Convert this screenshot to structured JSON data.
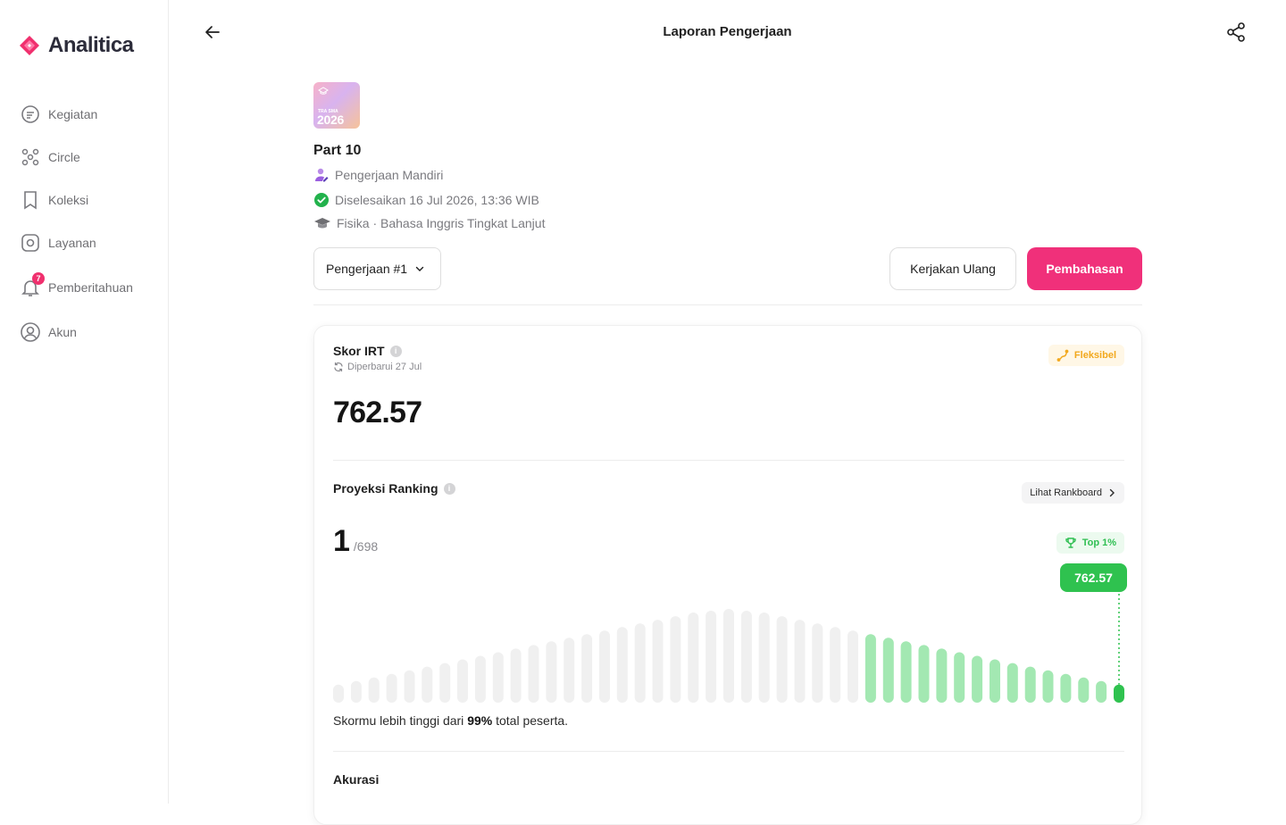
{
  "app": {
    "name": "Analitica",
    "brand_color": "#f0306e"
  },
  "sidebar": {
    "items": [
      {
        "label": "Kegiatan",
        "icon": "activity-icon"
      },
      {
        "label": "Circle",
        "icon": "circle-group-icon"
      },
      {
        "label": "Koleksi",
        "icon": "bookmark-icon"
      },
      {
        "label": "Layanan",
        "icon": "compass-icon"
      },
      {
        "label": "Pemberitahuan",
        "icon": "bell-icon",
        "badge": "7"
      },
      {
        "label": "Akun",
        "icon": "user-circle-icon"
      }
    ]
  },
  "header": {
    "title": "Laporan Pengerjaan"
  },
  "exam": {
    "thumb_small": "TRA SMA",
    "thumb_year": "2026",
    "title": "Part 10",
    "mode": "Pengerjaan Mandiri",
    "completed": "Diselesaikan 16 Jul 2026, 13:36 WIB",
    "subjects": "Fisika · Bahasa Inggris Tingkat Lanjut"
  },
  "actions": {
    "attempt_selected": "Pengerjaan #1",
    "redo_label": "Kerjakan Ulang",
    "review_label": "Pembahasan"
  },
  "irt": {
    "title": "Skor IRT",
    "updated": "Diperbarui 27 Jul",
    "badge": "Fleksibel",
    "score": "762.57"
  },
  "ranking": {
    "title": "Proyeksi Ranking",
    "rankboard_label": "Lihat Rankboard",
    "rank": "1",
    "total": "/698",
    "top_badge": "Top 1%",
    "score_pill": "762.57",
    "summary_before": "Skormu lebih tinggi dari ",
    "summary_pct": "99%",
    "summary_after": " total peserta."
  },
  "accuracy": {
    "title": "Akurasi"
  },
  "chart_data": {
    "type": "bar",
    "values": [
      20,
      24,
      28,
      32,
      36,
      40,
      44,
      48,
      52,
      56,
      60,
      64,
      68,
      72,
      76,
      80,
      84,
      88,
      92,
      96,
      100,
      102,
      104,
      102,
      100,
      96,
      92,
      88,
      84,
      80,
      76,
      72,
      68,
      64,
      60,
      56,
      52,
      48,
      44,
      40,
      36,
      32,
      28,
      24,
      20
    ],
    "highlight_from_index": 30,
    "marker_index": 44,
    "colors": {
      "base": "#f0f0f0",
      "highlight": "#a3e8b2",
      "marker": "#2fc24f"
    }
  }
}
